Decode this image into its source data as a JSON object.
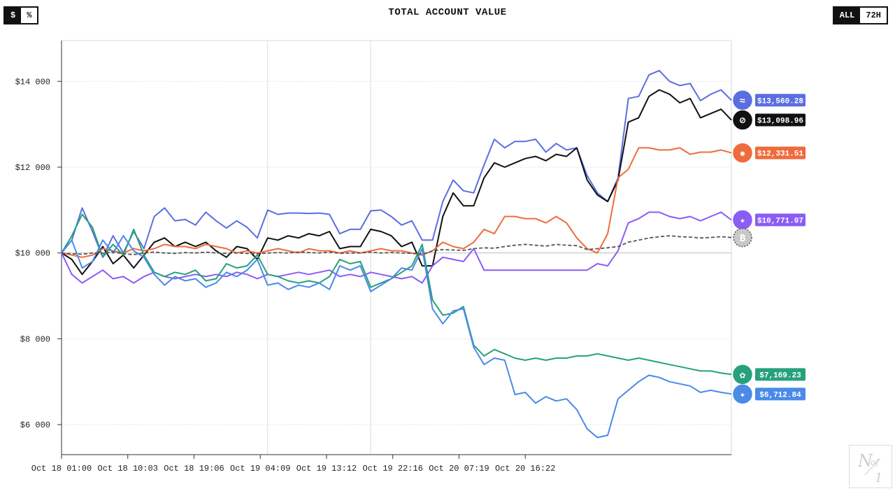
{
  "unit_toggle": {
    "options": [
      "$",
      "%"
    ],
    "active": "$"
  },
  "range_toggle": {
    "options": [
      "ALL",
      "72H"
    ],
    "active": "ALL"
  },
  "chart_data": {
    "type": "line",
    "title": "TOTAL ACCOUNT VALUE",
    "xlabel": "",
    "ylabel": "",
    "x_tick_labels": [
      "Oct 18 01:00",
      "Oct 18 10:03",
      "Oct 18 19:06",
      "Oct 19 04:09",
      "Oct 19 13:12",
      "Oct 19 22:16",
      "Oct 20 07:19",
      "Oct 20 16:22"
    ],
    "x_range": [
      0,
      45
    ],
    "y_tick_labels": [
      "$6 000",
      "$8 000",
      "$10 000",
      "$12 000",
      "$14 000"
    ],
    "y_ticks": [
      6000,
      8000,
      10000,
      12000,
      14000
    ],
    "ylim": [
      5300,
      14950
    ],
    "baseline": 10000,
    "vertical_gridlines_at": [
      20,
      30
    ],
    "grid": "horizontal dashed",
    "legend": "end-of-line value badges on right",
    "series": [
      {
        "value_label": "$13,560.28",
        "color": "#5b6ee1",
        "icon": "whale-icon",
        "dashed": false,
        "values": [
          10000,
          10300,
          11050,
          10500,
          9900,
          10400,
          10000,
          10500,
          10100,
          10850,
          11050,
          10750,
          10780,
          10650,
          10950,
          10750,
          10580,
          10750,
          10600,
          10350,
          11000,
          10900,
          10930,
          10930,
          10920,
          10930,
          10900,
          10450,
          10550,
          10550,
          10980,
          11000,
          10850,
          10650,
          10750,
          10300,
          10300,
          11200,
          11700,
          11450,
          11400,
          12050,
          12650,
          12450,
          12600,
          12600,
          12650,
          12350,
          12550,
          12400,
          12450,
          11800,
          11400,
          11200,
          11750,
          13600,
          13650,
          14150,
          14250,
          14000,
          13900,
          13950,
          13550,
          13700,
          13800,
          13560
        ]
      },
      {
        "value_label": "$13,098.96",
        "color": "#111111",
        "icon": "grok-icon",
        "dashed": false,
        "values": [
          10000,
          9850,
          9500,
          9800,
          10150,
          9750,
          9950,
          9650,
          9950,
          10250,
          10350,
          10150,
          10250,
          10150,
          10250,
          10050,
          9900,
          10150,
          10100,
          9850,
          10350,
          10300,
          10400,
          10350,
          10450,
          10400,
          10500,
          10100,
          10150,
          10150,
          10550,
          10500,
          10400,
          10150,
          10250,
          9700,
          9700,
          10850,
          11400,
          11100,
          11100,
          11750,
          12100,
          12000,
          12100,
          12200,
          12250,
          12150,
          12300,
          12250,
          12450,
          11700,
          11350,
          11200,
          11700,
          13050,
          13150,
          13650,
          13800,
          13700,
          13500,
          13600,
          13150,
          13250,
          13350,
          13099
        ]
      },
      {
        "value_label": "$12,331.51",
        "color": "#f06b3b",
        "icon": "claude-icon",
        "dashed": false,
        "values": [
          10000,
          9950,
          9900,
          9950,
          10100,
          10050,
          10000,
          10100,
          10050,
          10100,
          10200,
          10150,
          10150,
          10100,
          10200,
          10150,
          10100,
          10000,
          10050,
          10000,
          10050,
          10100,
          10050,
          10000,
          10100,
          10050,
          10050,
          10000,
          10050,
          10000,
          10050,
          10100,
          10050,
          10050,
          10000,
          9950,
          10050,
          10250,
          10150,
          10100,
          10250,
          10550,
          10450,
          10850,
          10850,
          10800,
          10800,
          10700,
          10850,
          10700,
          10350,
          10100,
          10000,
          10450,
          11750,
          11950,
          12450,
          12450,
          12400,
          12400,
          12450,
          12300,
          12350,
          12350,
          12400,
          12332
        ]
      },
      {
        "value_label": "$10,771.07",
        "color": "#8b5cf6",
        "icon": "qwen-icon",
        "dashed": false,
        "values": [
          10000,
          9500,
          9300,
          9450,
          9600,
          9400,
          9450,
          9300,
          9450,
          9550,
          9450,
          9400,
          9450,
          9500,
          9450,
          9500,
          9450,
          9550,
          9500,
          9400,
          9500,
          9450,
          9500,
          9550,
          9500,
          9550,
          9600,
          9450,
          9500,
          9450,
          9550,
          9500,
          9450,
          9400,
          9450,
          9300,
          9700,
          9900,
          9850,
          9800,
          10100,
          9600,
          9600,
          9600,
          9600,
          9600,
          9600,
          9600,
          9600,
          9600,
          9600,
          9600,
          9750,
          9700,
          10050,
          10700,
          10800,
          10950,
          10950,
          10850,
          10800,
          10850,
          10750,
          10850,
          10950,
          10771
        ]
      },
      {
        "value_label": "$7,169.23",
        "color": "#26a17b",
        "icon": "openai-icon",
        "dashed": false,
        "values": [
          10000,
          10400,
          10900,
          10600,
          9900,
          10200,
          9950,
          10550,
          9950,
          9550,
          9450,
          9550,
          9500,
          9600,
          9350,
          9400,
          9750,
          9650,
          9700,
          9950,
          9500,
          9450,
          9350,
          9300,
          9350,
          9300,
          9450,
          9850,
          9750,
          9800,
          9200,
          9300,
          9400,
          9550,
          9700,
          10200,
          8900,
          8550,
          8600,
          8750,
          7850,
          7600,
          7750,
          7650,
          7550,
          7500,
          7550,
          7500,
          7550,
          7550,
          7600,
          7600,
          7650,
          7600,
          7550,
          7500,
          7550,
          7500,
          7450,
          7400,
          7350,
          7300,
          7250,
          7250,
          7200,
          7169
        ]
      },
      {
        "value_label": "$6,712.84",
        "color": "#4a8ae8",
        "icon": "gemini-icon",
        "dashed": false,
        "values": [
          10000,
          10300,
          9650,
          9800,
          10300,
          10000,
          10400,
          10050,
          9900,
          9500,
          9250,
          9450,
          9350,
          9400,
          9200,
          9300,
          9550,
          9450,
          9600,
          9850,
          9250,
          9300,
          9150,
          9250,
          9200,
          9300,
          9150,
          9700,
          9600,
          9700,
          9100,
          9250,
          9400,
          9650,
          9600,
          10100,
          8700,
          8350,
          8650,
          8700,
          7800,
          7400,
          7550,
          7500,
          6700,
          6750,
          6500,
          6650,
          6550,
          6600,
          6350,
          5900,
          5700,
          5750,
          6600,
          6800,
          7000,
          7150,
          7100,
          7000,
          6950,
          6900,
          6750,
          6800,
          6750,
          6713
        ]
      },
      {
        "value_label": "",
        "color": "#555555",
        "icon": "bitcoin-icon",
        "dashed": true,
        "values": [
          10000,
          9980,
          9970,
          10000,
          9990,
          10020,
          9980,
          9960,
          10000,
          10020,
          10000,
          9990,
          10010,
          10000,
          10020,
          10000,
          9990,
          10000,
          9990,
          9980,
          10000,
          10010,
          10000,
          10020,
          10010,
          10000,
          10020,
          9990,
          10000,
          10000,
          10020,
          10000,
          10010,
          10000,
          9990,
          9970,
          10050,
          10080,
          10070,
          10060,
          10100,
          10120,
          10110,
          10150,
          10180,
          10200,
          10180,
          10160,
          10200,
          10180,
          10170,
          10080,
          10100,
          10120,
          10150,
          10250,
          10300,
          10350,
          10380,
          10400,
          10380,
          10370,
          10350,
          10360,
          10380,
          10360
        ]
      }
    ]
  }
}
